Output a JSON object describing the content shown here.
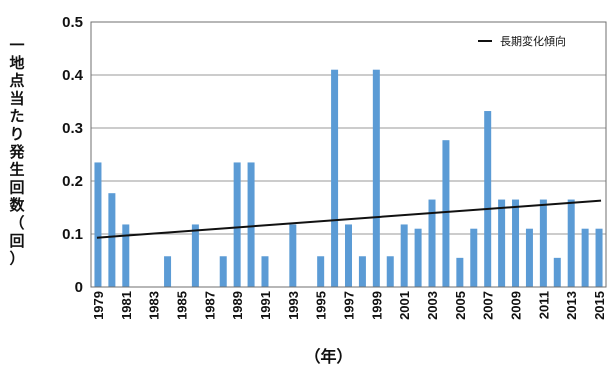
{
  "chart_data": {
    "type": "bar",
    "ylabel": "一地点当たり発生回数（回）",
    "xlabel": "（年）",
    "ylim": [
      0,
      0.5
    ],
    "yticks": [
      "0",
      "0.1",
      "0.2",
      "0.3",
      "0.4",
      "0.5"
    ],
    "xtick_labels": [
      "1979",
      "1981",
      "1983",
      "1985",
      "1987",
      "1989",
      "1991",
      "1993",
      "1995",
      "1997",
      "1999",
      "2001",
      "2003",
      "2005",
      "2007",
      "2009",
      "2011",
      "2013",
      "2015"
    ],
    "grid": true,
    "legend_position": "top-right",
    "bar_color": "#5b9bd5",
    "categories": [
      1979,
      1980,
      1981,
      1982,
      1983,
      1984,
      1985,
      1986,
      1987,
      1988,
      1989,
      1990,
      1991,
      1992,
      1993,
      1994,
      1995,
      1996,
      1997,
      1998,
      1999,
      2000,
      2001,
      2002,
      2003,
      2004,
      2005,
      2006,
      2007,
      2008,
      2009,
      2010,
      2011,
      2012,
      2013,
      2014,
      2015
    ],
    "series": [
      {
        "name": "",
        "values": [
          0.235,
          0.177,
          0.118,
          0,
          0,
          0.058,
          0,
          0.118,
          0,
          0.058,
          0.235,
          0.235,
          0.058,
          0,
          0.118,
          0,
          0.058,
          0.41,
          0.118,
          0.058,
          0.41,
          0.058,
          0.118,
          0.11,
          0.165,
          0.277,
          0.055,
          0.11,
          0.332,
          0.165,
          0.165,
          0.11,
          0.165,
          0.055,
          0.165,
          0.11,
          0.11
        ]
      }
    ],
    "trend": {
      "name": "長期変化傾向",
      "start": [
        1979,
        0.093
      ],
      "end": [
        2015,
        0.163
      ],
      "color": "#111111"
    }
  }
}
